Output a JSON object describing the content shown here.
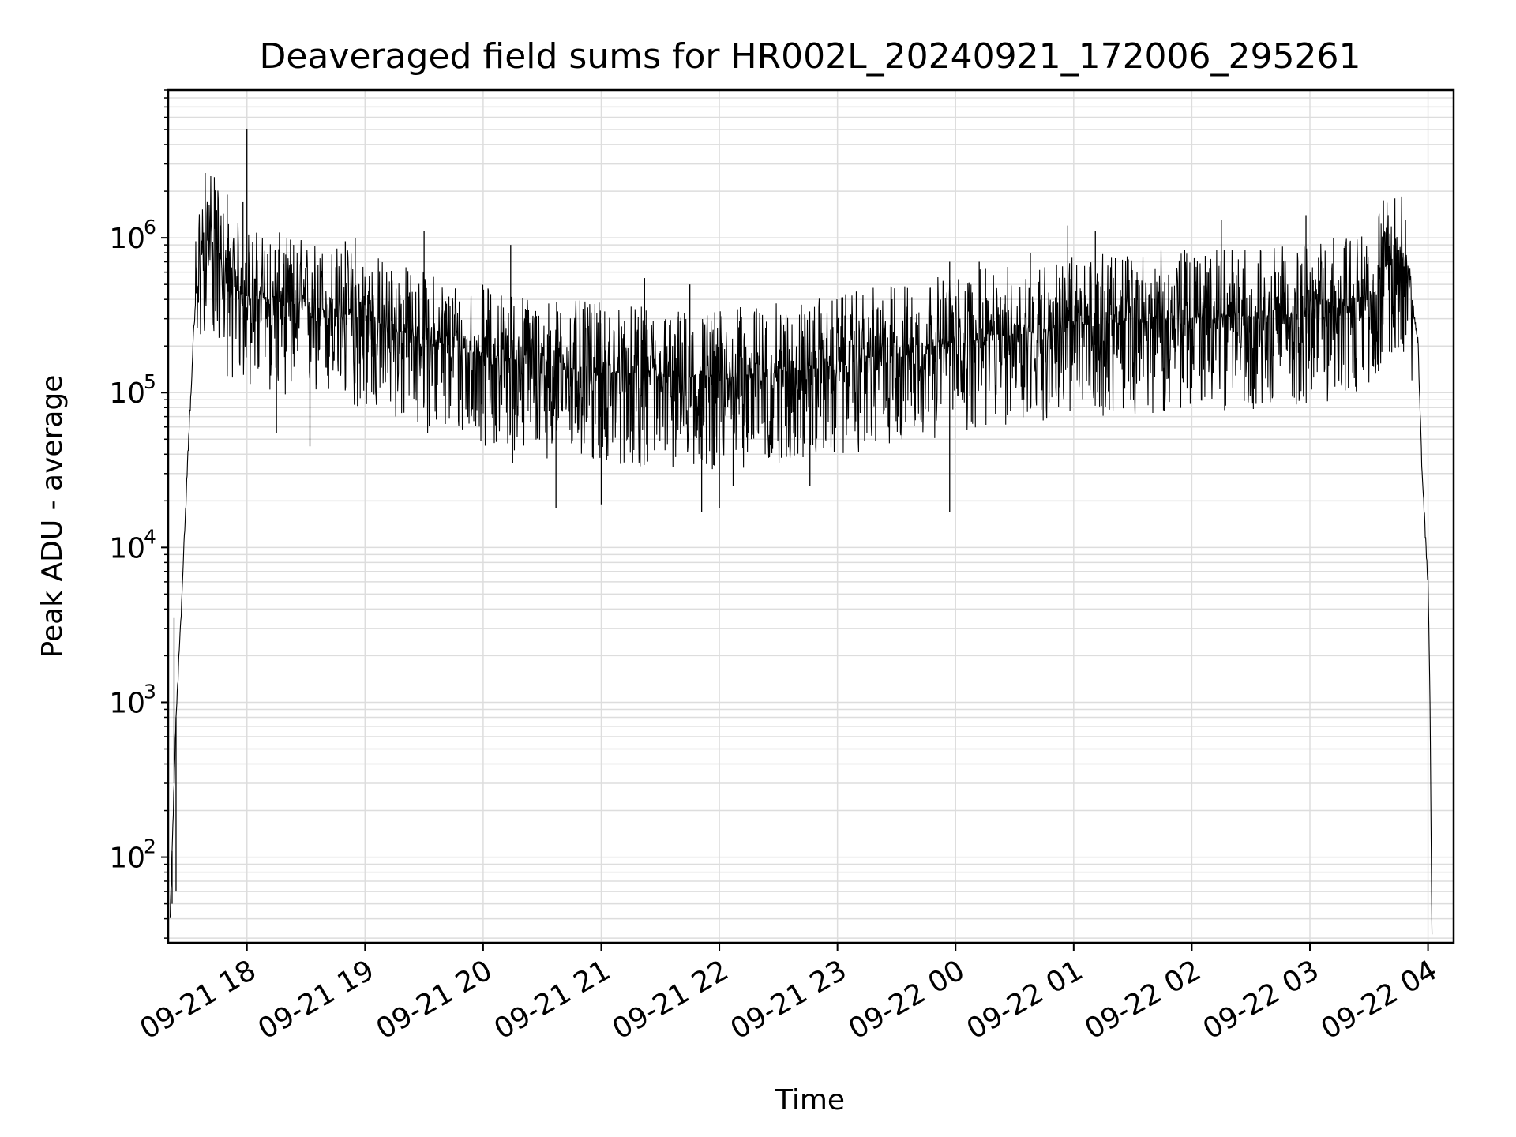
{
  "chart_data": {
    "type": "line",
    "title": "Deaveraged field sums for HR002L_20240921_172006_295261",
    "xlabel": "Time",
    "ylabel": "Peak ADU - average",
    "yscale": "log",
    "ylim": [
      28,
      9000000
    ],
    "xlim": [
      "09-21 17:20",
      "09-22 04:13"
    ],
    "grid": true,
    "line_color": "#000000",
    "grid_color": "#dddddd",
    "x_ticks": [
      {
        "t": "09-21 18:00",
        "label": "09-21 18"
      },
      {
        "t": "09-21 19:00",
        "label": "09-21 19"
      },
      {
        "t": "09-21 20:00",
        "label": "09-21 20"
      },
      {
        "t": "09-21 21:00",
        "label": "09-21 21"
      },
      {
        "t": "09-21 22:00",
        "label": "09-21 22"
      },
      {
        "t": "09-21 23:00",
        "label": "09-21 23"
      },
      {
        "t": "09-22 00:00",
        "label": "09-22 00"
      },
      {
        "t": "09-22 01:00",
        "label": "09-22 01"
      },
      {
        "t": "09-22 02:00",
        "label": "09-22 02"
      },
      {
        "t": "09-22 03:00",
        "label": "09-22 03"
      },
      {
        "t": "09-22 04:00",
        "label": "09-22 04"
      }
    ],
    "y_ticks": [
      {
        "value": 100,
        "base": "10",
        "exp": "2"
      },
      {
        "value": 1000,
        "base": "10",
        "exp": "3"
      },
      {
        "value": 10000,
        "base": "10",
        "exp": "4"
      },
      {
        "value": 100000,
        "base": "10",
        "exp": "5"
      },
      {
        "value": 1000000,
        "base": "10",
        "exp": "6"
      }
    ],
    "series": [
      {
        "baseline": [
          {
            "t": "09-21 17:21",
            "y": 40
          },
          {
            "t": "09-21 17:23",
            "y": 300
          },
          {
            "t": "09-21 17:24",
            "y": 800
          },
          {
            "t": "09-21 17:27",
            "y": 5000
          },
          {
            "t": "09-21 17:30",
            "y": 40000
          },
          {
            "t": "09-21 17:33",
            "y": 250000
          },
          {
            "t": "09-21 17:35",
            "y": 600000
          },
          {
            "t": "09-21 17:38",
            "y": 950000
          },
          {
            "t": "09-21 17:41",
            "y": 1050000
          },
          {
            "t": "09-21 17:45",
            "y": 800000
          },
          {
            "t": "09-21 17:50",
            "y": 500000
          },
          {
            "t": "09-21 18:00",
            "y": 420000
          },
          {
            "t": "09-21 18:30",
            "y": 360000
          },
          {
            "t": "09-21 19:00",
            "y": 300000
          },
          {
            "t": "09-21 19:30",
            "y": 220000
          },
          {
            "t": "09-21 20:00",
            "y": 180000
          },
          {
            "t": "09-21 20:30",
            "y": 150000
          },
          {
            "t": "09-21 21:00",
            "y": 135000
          },
          {
            "t": "09-21 21:30",
            "y": 125000
          },
          {
            "t": "09-21 22:00",
            "y": 125000
          },
          {
            "t": "09-21 22:30",
            "y": 135000
          },
          {
            "t": "09-21 23:00",
            "y": 150000
          },
          {
            "t": "09-21 23:30",
            "y": 185000
          },
          {
            "t": "09-22 00:00",
            "y": 210000
          },
          {
            "t": "09-22 00:30",
            "y": 240000
          },
          {
            "t": "09-22 01:00",
            "y": 270000
          },
          {
            "t": "09-22 01:30",
            "y": 290000
          },
          {
            "t": "09-22 02:00",
            "y": 300000
          },
          {
            "t": "09-22 02:30",
            "y": 310000
          },
          {
            "t": "09-22 03:00",
            "y": 320000
          },
          {
            "t": "09-22 03:30",
            "y": 400000
          },
          {
            "t": "09-22 03:38",
            "y": 650000
          },
          {
            "t": "09-22 03:45",
            "y": 750000
          },
          {
            "t": "09-22 03:50",
            "y": 650000
          },
          {
            "t": "09-22 03:55",
            "y": 200000
          },
          {
            "t": "09-22 03:57",
            "y": 30000
          },
          {
            "t": "09-22 04:00",
            "y": 6000
          },
          {
            "t": "09-22 04:01",
            "y": 1000
          },
          {
            "t": "09-22 04:02",
            "y": 30
          }
        ],
        "spikes": [
          {
            "t": "09-21 17:23",
            "y": 3500
          },
          {
            "t": "09-21 17:22",
            "y": 50
          },
          {
            "t": "09-21 17:24",
            "y": 60
          },
          {
            "t": "09-21 17:50",
            "y": 1900000
          },
          {
            "t": "09-21 17:58",
            "y": 1700000
          },
          {
            "t": "09-21 18:00",
            "y": 5000000
          },
          {
            "t": "09-21 18:15",
            "y": 55000
          },
          {
            "t": "09-21 18:32",
            "y": 45000
          },
          {
            "t": "09-21 18:50",
            "y": 950000
          },
          {
            "t": "09-21 18:55",
            "y": 1000000
          },
          {
            "t": "09-21 19:30",
            "y": 1100000
          },
          {
            "t": "09-21 20:14",
            "y": 900000
          },
          {
            "t": "09-21 20:15",
            "y": 35000
          },
          {
            "t": "09-21 20:37",
            "y": 18000
          },
          {
            "t": "09-21 21:00",
            "y": 19000
          },
          {
            "t": "09-21 21:22",
            "y": 550000
          },
          {
            "t": "09-21 21:45",
            "y": 500000
          },
          {
            "t": "09-21 21:51",
            "y": 17000
          },
          {
            "t": "09-21 22:00",
            "y": 18000
          },
          {
            "t": "09-21 22:07",
            "y": 25000
          },
          {
            "t": "09-21 22:46",
            "y": 25000
          },
          {
            "t": "09-21 23:57",
            "y": 17000
          },
          {
            "t": "09-21 23:57",
            "y": 700000
          },
          {
            "t": "09-22 00:12",
            "y": 700000
          },
          {
            "t": "09-22 00:38",
            "y": 800000
          },
          {
            "t": "09-22 00:57",
            "y": 1200000
          },
          {
            "t": "09-22 01:11",
            "y": 1100000
          },
          {
            "t": "09-22 02:15",
            "y": 1300000
          },
          {
            "t": "09-22 02:58",
            "y": 1400000
          },
          {
            "t": "09-22 03:12",
            "y": 1000000
          }
        ],
        "noise_band_decades": [
          -0.6,
          0.45
        ]
      }
    ]
  }
}
